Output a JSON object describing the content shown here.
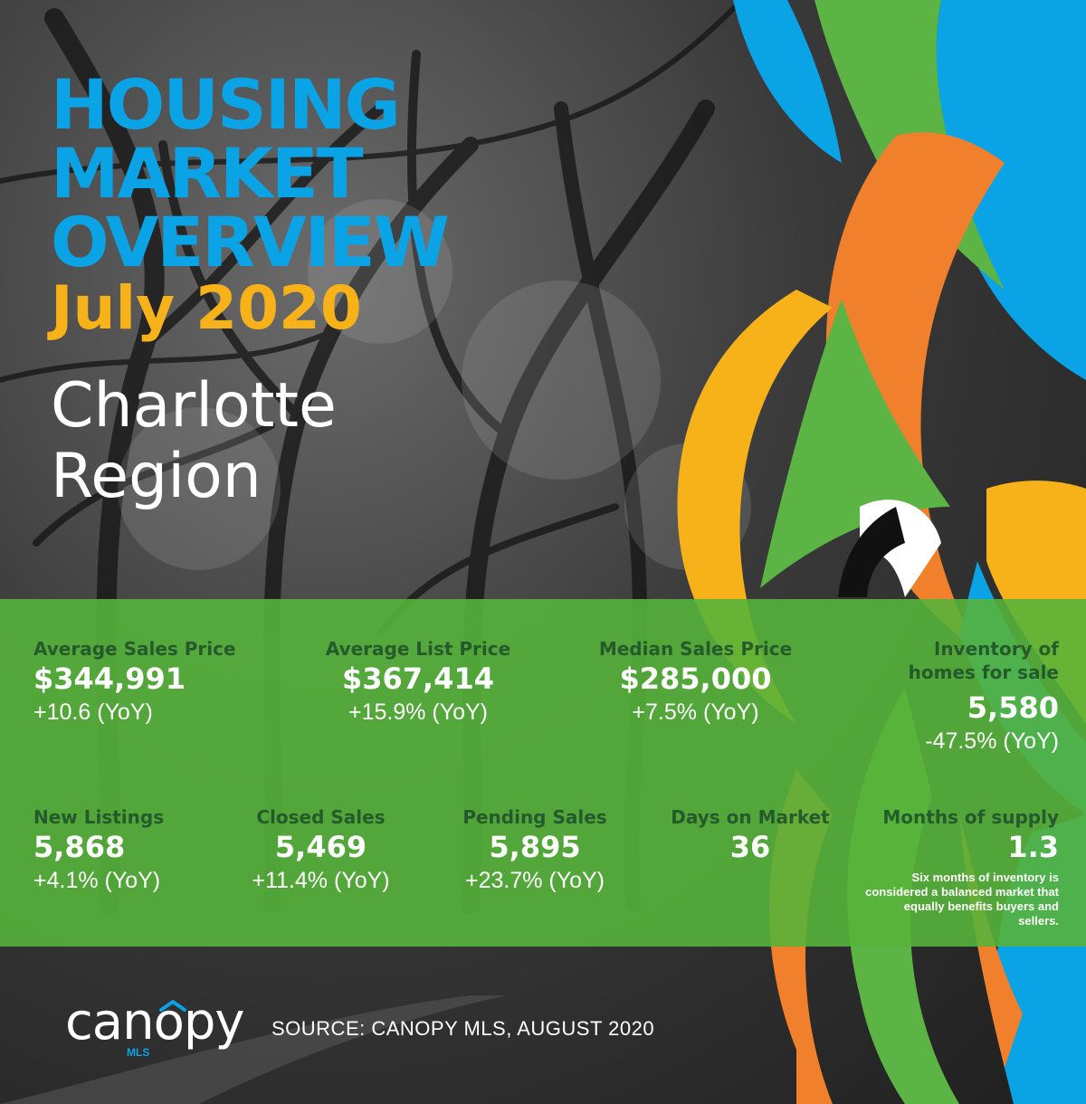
{
  "header": {
    "title": "HOUSING\nMARKET\nOVERVIEW",
    "subtitle": "July 2020",
    "region": "Charlotte\nRegion"
  },
  "colors": {
    "blue": "#0aa3e6",
    "orange": "#f0802b",
    "yellow": "#f7b21a",
    "green": "#5bb443",
    "band_green": "#56b23a"
  },
  "stats_top": [
    {
      "label": "Average Sales Price",
      "value": "$344,991",
      "change": "+10.6 (YoY)"
    },
    {
      "label": "Average List Price",
      "value": "$367,414",
      "change": "+15.9% (YoY)"
    },
    {
      "label": "Median Sales Price",
      "value": "$285,000",
      "change": "+7.5% (YoY)"
    },
    {
      "label": "Inventory of homes for sale",
      "value": "5,580",
      "change": "-47.5% (YoY)"
    }
  ],
  "stats_bottom": [
    {
      "label": "New Listings",
      "value": "5,868",
      "change": "+4.1% (YoY)"
    },
    {
      "label": "Closed Sales",
      "value": "5,469",
      "change": "+11.4% (YoY)"
    },
    {
      "label": "Pending Sales",
      "value": "5,895",
      "change": "+23.7% (YoY)"
    },
    {
      "label": "Days on Market",
      "value": "36"
    },
    {
      "label": "Months of supply",
      "value": "1.3",
      "note": "Six months of inventory is considered a balanced market that equally benefits buyers and sellers."
    }
  ],
  "footer": {
    "brand": "canopy",
    "brand_sub": "MLS",
    "source": "SOURCE:  CANOPY MLS, AUGUST 2020"
  },
  "icons": [
    "roof-icon"
  ]
}
